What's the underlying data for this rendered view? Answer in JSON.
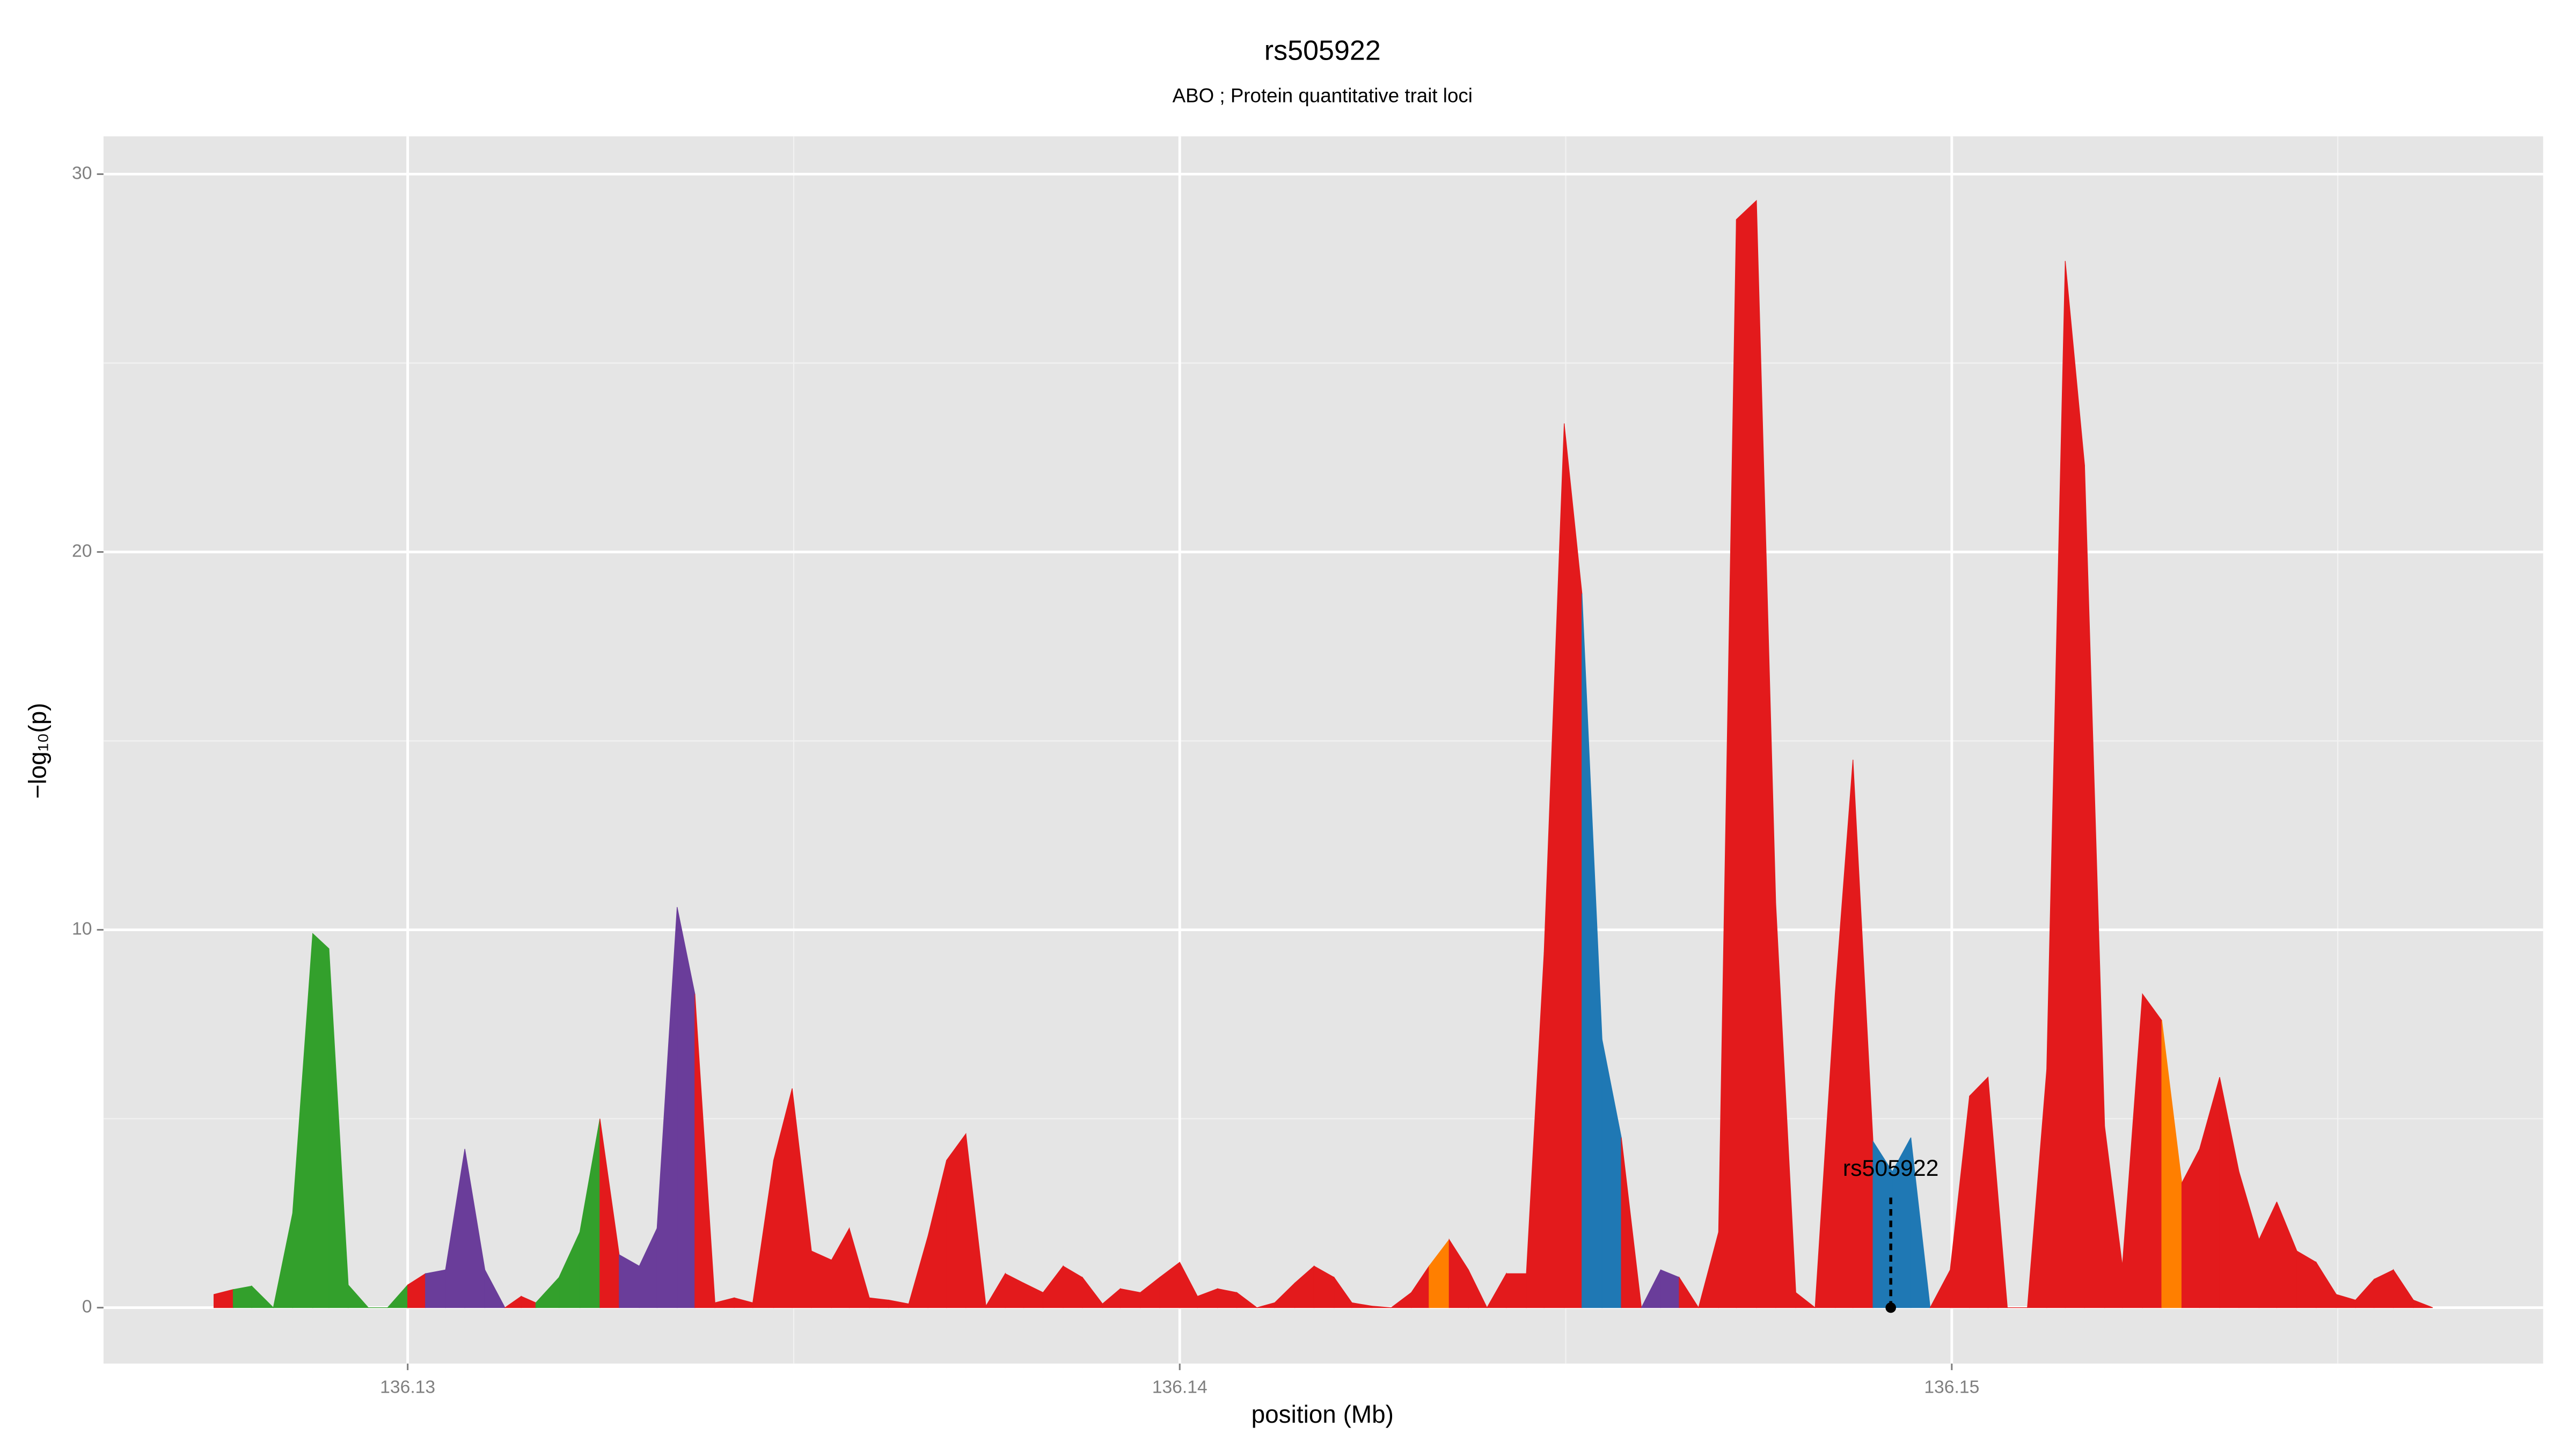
{
  "chart_data": {
    "type": "area",
    "title": "rs505922",
    "subtitle": "ABO ; Protein quantitative trait loci",
    "x_label": "position (Mb)",
    "y_label": "−log₁₀(p)",
    "xlim": [
      136.12606,
      136.15766
    ],
    "ylim": [
      -1.48,
      31.0
    ],
    "xticks": [
      136.13,
      136.14,
      136.15
    ],
    "yticks": [
      0,
      10,
      20,
      30
    ],
    "xminorticks": [
      136.135,
      136.145,
      136.155
    ],
    "yminorticks": [
      5,
      15,
      25
    ],
    "grid": true,
    "x": [
      136.12749,
      136.12774,
      136.12798,
      136.12826,
      136.12851,
      136.12877,
      136.12898,
      136.12923,
      136.12949,
      136.12974,
      136.13,
      136.13023,
      136.13049,
      136.13074,
      136.131,
      136.13126,
      136.13147,
      136.13166,
      136.13196,
      136.13223,
      136.13249,
      136.13274,
      136.133,
      136.13323,
      136.13349,
      136.13372,
      136.13398,
      136.13423,
      136.13447,
      136.13474,
      136.13498,
      136.13523,
      136.13549,
      136.13572,
      136.13598,
      136.13623,
      136.13649,
      136.13674,
      136.13698,
      136.13723,
      136.13749,
      136.13774,
      136.13798,
      136.13823,
      136.13849,
      136.13874,
      136.139,
      136.13923,
      136.13949,
      136.13974,
      136.14,
      136.14023,
      136.14049,
      136.14074,
      136.141,
      136.14123,
      136.14149,
      136.14174,
      136.142,
      136.14223,
      136.14249,
      136.14274,
      136.143,
      136.14323,
      136.14349,
      136.14374,
      136.14398,
      136.14423,
      136.14449,
      136.14472,
      136.14498,
      136.14521,
      136.14547,
      136.14572,
      136.14598,
      136.14623,
      136.14647,
      136.14672,
      136.14698,
      136.14721,
      136.14747,
      136.14772,
      136.14798,
      136.14823,
      136.14849,
      136.14872,
      136.14898,
      136.14923,
      136.14947,
      136.14972,
      136.14998,
      136.15023,
      136.15047,
      136.15072,
      136.15098,
      136.15123,
      136.15147,
      136.15172,
      136.15198,
      136.15221,
      136.15247,
      136.15272,
      136.15298,
      136.15321,
      136.15347,
      136.15372,
      136.15398,
      136.15421,
      136.15447,
      136.15472,
      136.15498,
      136.15523,
      136.15547,
      136.15572,
      136.15598,
      136.15623
    ],
    "values": [
      0.35,
      0.48,
      0.57,
      0,
      2.5,
      9.9,
      9.5,
      0.6,
      0,
      0,
      0.6,
      0.9,
      1.0,
      4.2,
      1.0,
      0,
      0.3,
      0.13,
      0.8,
      2.0,
      5.0,
      1.4,
      1.1,
      2.1,
      10.6,
      8.3,
      0.13,
      0.26,
      0.13,
      3.9,
      5.8,
      1.5,
      1.26,
      2.1,
      0.26,
      0.2,
      0.1,
      1.9,
      3.9,
      4.6,
      0.04,
      0.9,
      0.65,
      0.4,
      1.1,
      0.8,
      0.1,
      0.5,
      0.4,
      0.8,
      1.2,
      0.3,
      0.5,
      0.4,
      0,
      0.13,
      0.65,
      1.1,
      0.8,
      0.13,
      0.04,
      0,
      0.4,
      1.1,
      1.8,
      1.0,
      0,
      0.9,
      0.9,
      9.4,
      23.4,
      18.9,
      7.1,
      4.5,
      0,
      1.0,
      0.8,
      0,
      2.0,
      28.8,
      29.3,
      10.7,
      0.4,
      0,
      8.3,
      14.5,
      4.4,
      3.6,
      4.5,
      0,
      1.0,
      5.6,
      6.1,
      0,
      0,
      6.3,
      27.7,
      22.3,
      4.8,
      1.1,
      8.3,
      7.6,
      3.3,
      4.2,
      6.1,
      3.6,
      1.8,
      2.8,
      1.5,
      1.2,
      0.35,
      0.2,
      0.75,
      1.0,
      0.2,
      0
    ],
    "colors": [
      "#e31a1c",
      "#33a02c",
      "#33a02c",
      "#33a02c",
      "#33a02c",
      "#33a02c",
      "#33a02c",
      "#33a02c",
      "#33a02c",
      "#33a02c",
      "#e31a1c",
      "#6a3d9a",
      "#6a3d9a",
      "#6a3d9a",
      "#6a3d9a",
      "#e31a1c",
      "#e31a1c",
      "#33a02c",
      "#33a02c",
      "#33a02c",
      "#e31a1c",
      "#6a3d9a",
      "#6a3d9a",
      "#6a3d9a",
      "#6a3d9a",
      "#e31a1c",
      "#e31a1c",
      "#e31a1c",
      "#e31a1c",
      "#e31a1c",
      "#e31a1c",
      "#e31a1c",
      "#e31a1c",
      "#e31a1c",
      "#e31a1c",
      "#e31a1c",
      "#e31a1c",
      "#e31a1c",
      "#e31a1c",
      "#e31a1c",
      "#e31a1c",
      "#e31a1c",
      "#e31a1c",
      "#e31a1c",
      "#e31a1c",
      "#e31a1c",
      "#e31a1c",
      "#e31a1c",
      "#e31a1c",
      "#e31a1c",
      "#e31a1c",
      "#e31a1c",
      "#e31a1c",
      "#e31a1c",
      "#e31a1c",
      "#e31a1c",
      "#e31a1c",
      "#e31a1c",
      "#e31a1c",
      "#e31a1c",
      "#e31a1c",
      "#e31a1c",
      "#e31a1c",
      "#ff7f00",
      "#e31a1c",
      "#e31a1c",
      "#e31a1c",
      "#e31a1c",
      "#e31a1c",
      "#e31a1c",
      "#e31a1c",
      "#1f78b4",
      "#1f78b4",
      "#e31a1c",
      "#6a3d9a",
      "#6a3d9a",
      "#e31a1c",
      "#e31a1c",
      "#e31a1c",
      "#e31a1c",
      "#e31a1c",
      "#e31a1c",
      "#e31a1c",
      "#e31a1c",
      "#e31a1c",
      "#e31a1c",
      "#1f78b4",
      "#1f78b4",
      "#1f78b4",
      "#e31a1c",
      "#e31a1c",
      "#e31a1c",
      "#e31a1c",
      "#e31a1c",
      "#e31a1c",
      "#e31a1c",
      "#e31a1c",
      "#e31a1c",
      "#e31a1c",
      "#e31a1c",
      "#e31a1c",
      "#ff7f00",
      "#e31a1c",
      "#e31a1c",
      "#e31a1c",
      "#e31a1c",
      "#e31a1c",
      "#e31a1c",
      "#e31a1c",
      "#e31a1c",
      "#e31a1c",
      "#e31a1c",
      "#e31a1c",
      "#e31a1c",
      "#e31a1c",
      "#e31a1c"
    ],
    "annotations": [
      {
        "label": "rs505922",
        "x": 136.14921,
        "y": 0
      }
    ]
  }
}
